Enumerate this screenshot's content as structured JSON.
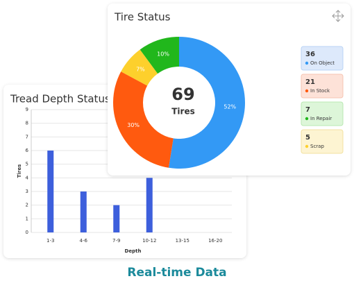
{
  "chart_data": [
    {
      "type": "bar",
      "title": "Tread Depth Status",
      "categories": [
        "1-3",
        "4-6",
        "7-9",
        "10-12",
        "13-15",
        "16-20"
      ],
      "values": [
        6,
        3,
        2,
        4,
        0,
        0
      ],
      "color": "#3d5fdc",
      "xlabel": "Depth",
      "ylabel": "Tires",
      "ylim": [
        0,
        9
      ],
      "yticks": [
        0,
        1,
        2,
        3,
        4,
        5,
        6,
        7,
        8,
        9
      ],
      "grid": true
    },
    {
      "type": "pie",
      "title": "Tire Status",
      "total": "69",
      "total_label": "Tires",
      "values": [
        52,
        30,
        7,
        10
      ],
      "value_labels": [
        "52%",
        "30%",
        "7%",
        "10%"
      ],
      "colors": [
        "#3399f5",
        "#ff5a0f",
        "#fdd02c",
        "#21b71c"
      ],
      "legend": [
        {
          "count": "36",
          "label": "On Object",
          "color": "#3399f5",
          "bg": "#dde9fb",
          "border": "#b9d3f4"
        },
        {
          "count": "21",
          "label": "In Stock",
          "color": "#ff5a0f",
          "bg": "#fde2d8",
          "border": "#f6c4b2"
        },
        {
          "count": "7",
          "label": "In Repair",
          "color": "#21b71c",
          "bg": "#ddf6d9",
          "border": "#b9e8b2"
        },
        {
          "count": "5",
          "label": "Scrap",
          "color": "#fdd02c",
          "bg": "#fdf4d2",
          "border": "#f2e1a0"
        }
      ]
    }
  ],
  "caption": "Real-time Data"
}
